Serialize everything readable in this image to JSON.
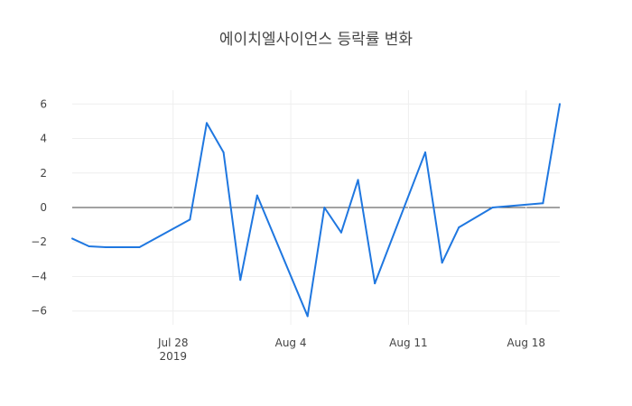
{
  "chart_data": {
    "type": "line",
    "title": "에이치엘사이언스 등락률 변화",
    "xlabel": "",
    "ylabel": "",
    "x": [
      "2019-07-22",
      "2019-07-23",
      "2019-07-24",
      "2019-07-25",
      "2019-07-26",
      "2019-07-29",
      "2019-07-30",
      "2019-07-31",
      "2019-08-01",
      "2019-08-02",
      "2019-08-05",
      "2019-08-06",
      "2019-08-07",
      "2019-08-08",
      "2019-08-09",
      "2019-08-12",
      "2019-08-13",
      "2019-08-14",
      "2019-08-16",
      "2019-08-19",
      "2019-08-20"
    ],
    "series": [
      {
        "values": [
          -1.8,
          -2.25,
          -2.3,
          -2.3,
          -2.3,
          -0.7,
          4.9,
          3.2,
          -4.2,
          0.7,
          -6.3,
          0.0,
          -1.45,
          1.6,
          -4.4,
          3.2,
          -3.2,
          -1.15,
          0.0,
          0.25,
          6.0
        ]
      }
    ],
    "xlim": [
      "2019-07-22",
      "2019-08-20"
    ],
    "ylim": [
      -6.8,
      6.8
    ],
    "yticks": [
      -6,
      -4,
      -2,
      0,
      2,
      4,
      6
    ],
    "xticks": [
      {
        "date": "2019-07-28",
        "label": "Jul 28",
        "sublabel": "2019"
      },
      {
        "date": "2019-08-04",
        "label": "Aug 4",
        "sublabel": ""
      },
      {
        "date": "2019-08-11",
        "label": "Aug 11",
        "sublabel": ""
      },
      {
        "date": "2019-08-18",
        "label": "Aug 18",
        "sublabel": ""
      }
    ],
    "grid": true,
    "line_color": "#1f77e0",
    "zero_line_color": "#444444",
    "grid_color": "#eeeeee"
  }
}
